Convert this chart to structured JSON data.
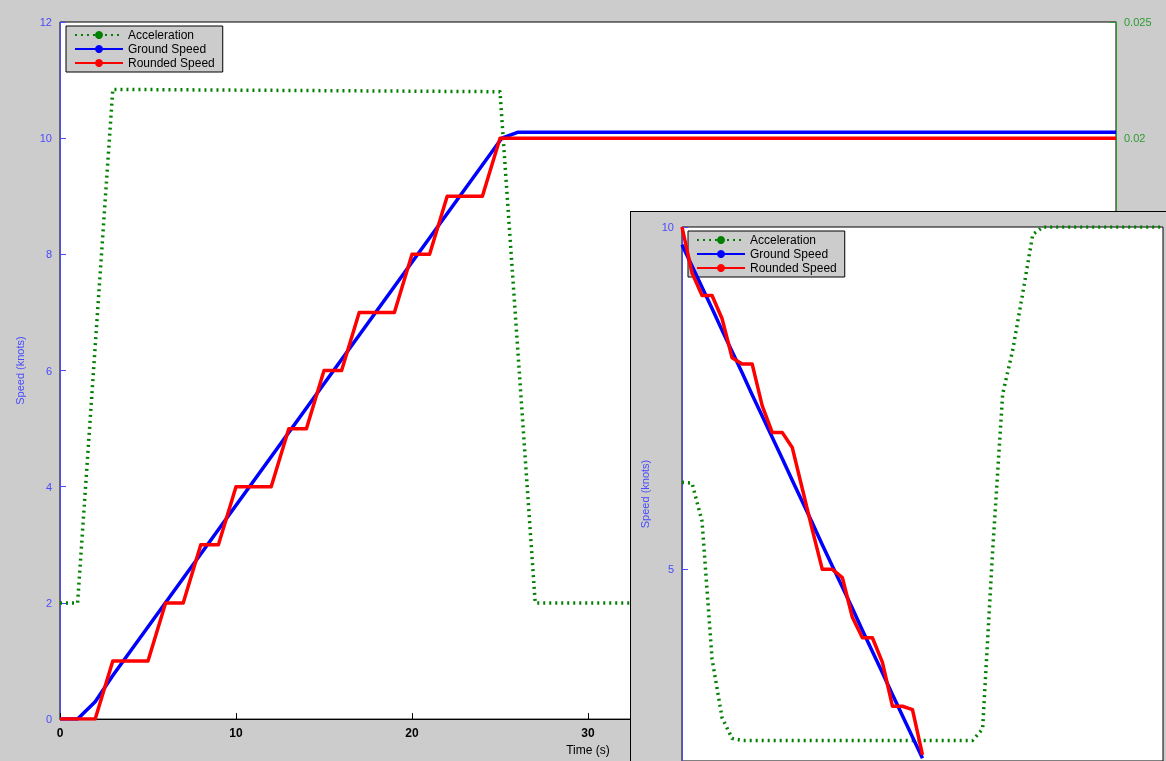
{
  "chart_data": [
    {
      "type": "line",
      "xlabel": "Time (s)",
      "ylabel": "Speed (knots)",
      "xlim": [
        0,
        60
      ],
      "xticks": [
        0,
        10,
        20,
        30
      ],
      "ylim": [
        0,
        12
      ],
      "yticks": [
        0,
        2,
        4,
        6,
        8,
        10,
        12
      ],
      "y2lim": [
        -0.005,
        0.025
      ],
      "y2ticks": [
        0.02,
        0.025
      ],
      "legend": "top left",
      "marker": "none",
      "series": [
        {
          "name": "Acceleration",
          "color": "#008000",
          "line_style": "dotted",
          "axis": "y2",
          "x": [
            0,
            1,
            3,
            25,
            27,
            32.4
          ],
          "values": [
            0,
            0,
            0.0221,
            0.022,
            0,
            0
          ]
        },
        {
          "name": "Ground Speed",
          "color": "#0000ff",
          "x": [
            0,
            1,
            2,
            3,
            25.1,
            26,
            60
          ],
          "values": [
            0,
            0,
            0.3,
            0.75,
            10,
            10.1,
            10.1
          ]
        },
        {
          "name": "Rounded Speed",
          "color": "#ff0000",
          "x": [
            0,
            2,
            3,
            5,
            6,
            7,
            8,
            9,
            10,
            12,
            13,
            14,
            15,
            16,
            17,
            19,
            20,
            21,
            22,
            24,
            25,
            60
          ],
          "values": [
            0,
            0,
            1,
            1,
            2,
            2,
            3,
            3,
            4,
            4,
            5,
            5,
            6,
            6,
            7,
            7,
            8,
            8,
            9,
            9,
            10,
            10
          ]
        }
      ]
    },
    {
      "type": "line",
      "ylabel": "Speed (knots)",
      "ylim": [
        2.2,
        10
      ],
      "yticks": [
        5,
        10
      ],
      "legend": "top left",
      "marker": "none",
      "categories": [
        null,
        null,
        null,
        null,
        null,
        null,
        null,
        null,
        null,
        null,
        null,
        null,
        null,
        null,
        null,
        null,
        null,
        null,
        null,
        null,
        null,
        null,
        null,
        null,
        null,
        null,
        null,
        null,
        null,
        null,
        null,
        null,
        null,
        null,
        null,
        null,
        null,
        null,
        null,
        null,
        null,
        null,
        null,
        null,
        null,
        null,
        null,
        null,
        null
      ],
      "series": [
        {
          "name": "Acceleration",
          "color": "#008000",
          "line_style": "dotted",
          "values": [
            6.27,
            6.26,
            5.7,
            3.69,
            2.83,
            2.53,
            2.5,
            2.5,
            2.5,
            2.5,
            2.5,
            2.5,
            2.5,
            2.5,
            2.5,
            2.5,
            2.5,
            2.5,
            2.5,
            2.5,
            2.5,
            2.5,
            2.5,
            2.5,
            2.5,
            2.5,
            2.5,
            2.5,
            2.5,
            2.5,
            2.67,
            5.27,
            7.56,
            8.2,
            9.03,
            9.89,
            10,
            10,
            10,
            10,
            10,
            10,
            10,
            10,
            10,
            10,
            10,
            10,
            10
          ]
        },
        {
          "name": "Ground Speed",
          "color": "#0000ff",
          "values": [
            9.74,
            9.43,
            9.12,
            8.81,
            8.49,
            8.18,
            7.87,
            7.55,
            7.24,
            6.93,
            6.62,
            6.3,
            5.99,
            5.68,
            5.36,
            5.05,
            4.74,
            4.43,
            4.11,
            3.8,
            3.49,
            3.17,
            2.86,
            2.55,
            2.24,
            null,
            null,
            null,
            null,
            null,
            null,
            null,
            null,
            null,
            null,
            null,
            null,
            null,
            null,
            null,
            null,
            null,
            null,
            null,
            null,
            null,
            null,
            null,
            null
          ]
        },
        {
          "name": "Rounded Speed",
          "color": "#ff0000",
          "values": [
            10,
            9.33,
            9,
            9,
            8.66,
            8.09,
            8,
            8,
            7.39,
            7,
            7,
            6.78,
            6.18,
            5.58,
            5,
            5,
            4.88,
            4.3,
            4,
            4,
            3.64,
            3,
            3,
            2.95,
            2.29,
            null,
            null,
            null,
            null,
            null,
            null,
            null,
            null,
            null,
            null,
            null,
            null,
            null,
            null,
            null,
            null,
            null,
            null,
            null,
            null,
            null,
            null,
            null,
            null
          ]
        }
      ]
    }
  ]
}
